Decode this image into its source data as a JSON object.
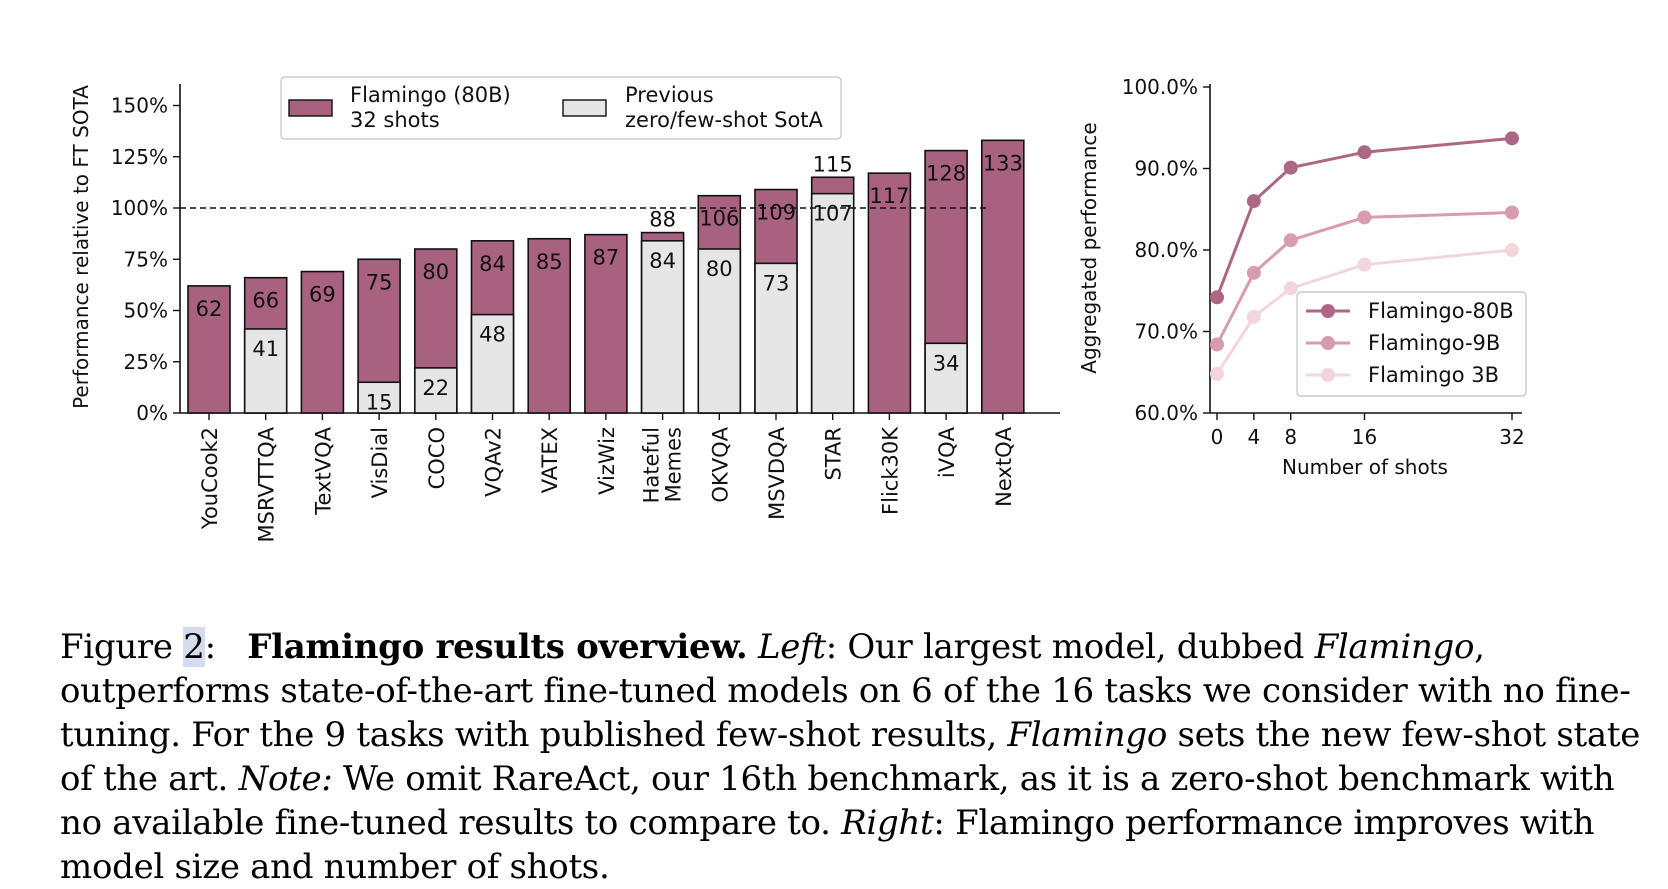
{
  "colors": {
    "flamingo": "#a8617e",
    "previous": "#e6e6e6",
    "line80b": "#ad6685",
    "line9b": "#d99cae",
    "line3b": "#f3d6dc"
  },
  "chart_data": [
    {
      "type": "bar",
      "ylabel": "Performance relative to FT SOTA",
      "ylim": [
        0,
        160
      ],
      "yticks": [
        "0%",
        "25%",
        "50%",
        "75%",
        "100%",
        "125%",
        "150%"
      ],
      "reference_line": 100,
      "legend": [
        {
          "name": "Flamingo (80B)",
          "line2": "32 shots"
        },
        {
          "name": "Previous",
          "line2": "zero/few-shot SotA"
        }
      ],
      "categories": [
        {
          "label": "YouCook2"
        },
        {
          "label": "MSRVTTQA"
        },
        {
          "label": "TextVQA"
        },
        {
          "label": "VisDial"
        },
        {
          "label": "COCO"
        },
        {
          "label": "VQAv2"
        },
        {
          "label": "VATEX"
        },
        {
          "label": "VizWiz"
        },
        {
          "label": "Hateful",
          "label2": "Memes"
        },
        {
          "label": "OKVQA"
        },
        {
          "label": "MSVDQA"
        },
        {
          "label": "STAR"
        },
        {
          "label": "Flick30K"
        },
        {
          "label": "iVQA"
        },
        {
          "label": "NextQA"
        }
      ],
      "series": [
        {
          "name": "Flamingo (80B) 32 shots",
          "values": [
            62,
            66,
            69,
            75,
            80,
            84,
            85,
            87,
            88,
            106,
            109,
            115,
            117,
            128,
            133
          ],
          "value_labels": [
            "62",
            "66",
            "69",
            "75",
            "80",
            "84",
            "85",
            "87",
            "88",
            "106",
            "109",
            "115",
            "117",
            "128",
            "133"
          ]
        },
        {
          "name": "Previous zero/few-shot SotA",
          "values": [
            null,
            41,
            null,
            15,
            22,
            48,
            null,
            null,
            84,
            80,
            73,
            107,
            null,
            34,
            null
          ],
          "value_labels": [
            "",
            "41",
            "",
            "15",
            "22",
            "48",
            "",
            "",
            "84",
            "80",
            "73",
            "107",
            "",
            "34",
            ""
          ]
        }
      ]
    },
    {
      "type": "line",
      "ylabel": "Aggregated performance",
      "xlabel": "Number of shots",
      "x": [
        0,
        4,
        8,
        16,
        32
      ],
      "xticks": [
        "0",
        "4",
        "8",
        "16",
        "32"
      ],
      "ylim": [
        60,
        100
      ],
      "yticks": [
        "60.0%",
        "70.0%",
        "80.0%",
        "90.0%",
        "100.0%"
      ],
      "series": [
        {
          "name": "Flamingo-80B",
          "values": [
            74.2,
            86.0,
            90.1,
            92.0,
            93.7
          ]
        },
        {
          "name": "Flamingo-9B",
          "values": [
            68.4,
            77.2,
            81.2,
            84.0,
            84.6
          ]
        },
        {
          "name": "Flamingo 3B",
          "values": [
            64.8,
            71.8,
            75.3,
            78.2,
            80.0
          ]
        }
      ]
    }
  ],
  "caption": {
    "fig_prefix": "Figure ",
    "fig_num": "2",
    "fig_colon": ":",
    "bold_title": "Flamingo results overview.",
    "left_label": "Left",
    "text1": ": Our largest model, dubbed ",
    "flamingo_italic": "Flamingo",
    "text2": ", outperforms state-of-the-art fine-tuned models on 6 of the 16 tasks we consider with no fine-tuning. For the 9 tasks with published few-shot results, ",
    "flamingo_italic2": "Flamingo",
    "text3": " sets the new few-shot state of the art. ",
    "note_label": "Note:",
    "text4": " We omit RareAct, our 16th benchmark, as it is a zero-shot benchmark with no available fine-tuned results to compare to. ",
    "right_label": "Right",
    "text5": ": Flamingo performance improves with model size and number of shots."
  }
}
